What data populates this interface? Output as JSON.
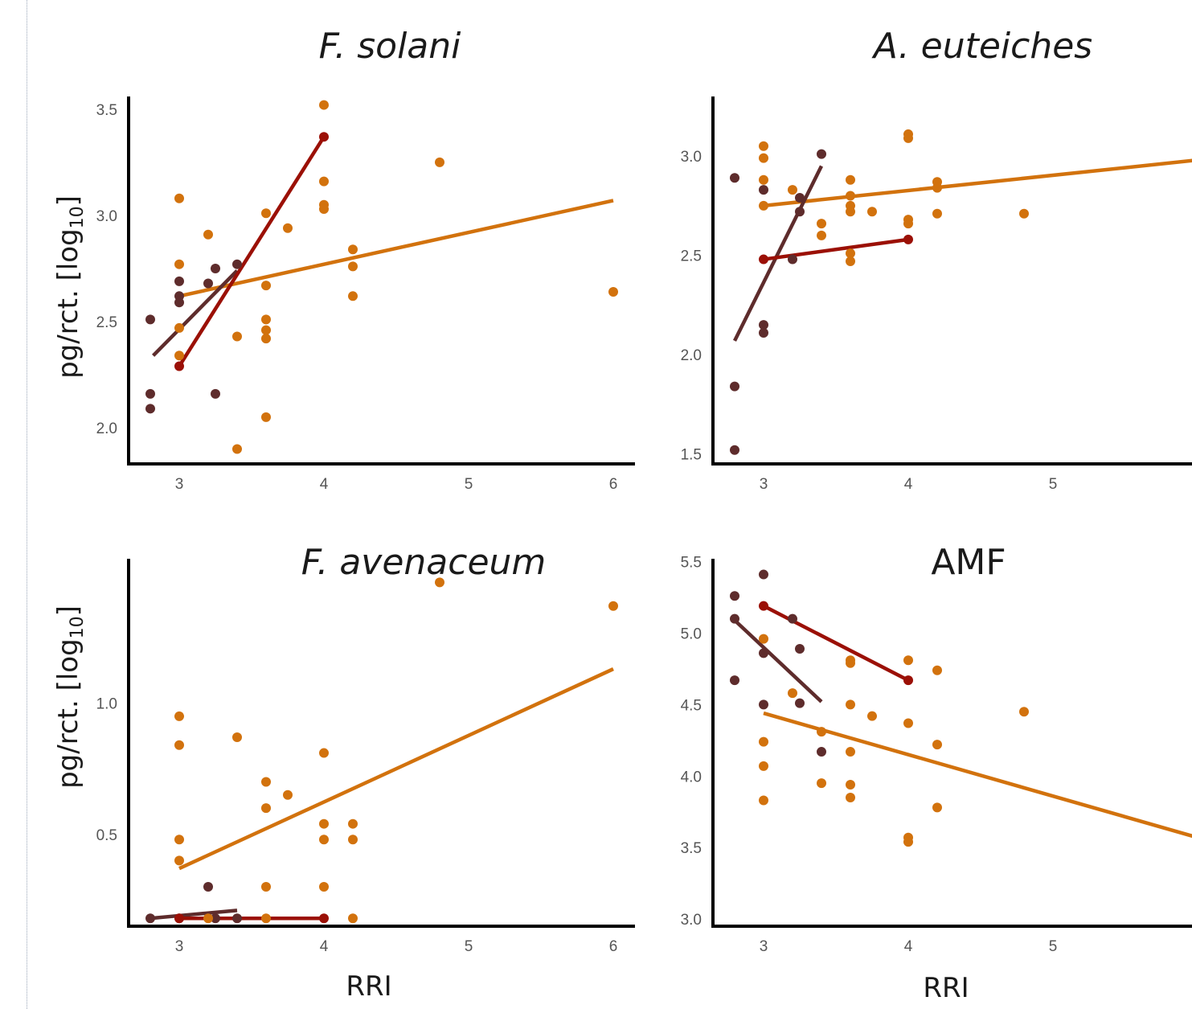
{
  "figure": {
    "ylabel": "pg/rct. [log",
    "ylabel_sub": "10",
    "ylabel_close": "]",
    "xlabel": "RRI"
  },
  "colors": {
    "orange": "#d2720d",
    "darkred": "#9b1006",
    "maroon": "#5e2c2c"
  },
  "chart_data": [
    {
      "type": "scatter",
      "title": "F. solani",
      "xlim": [
        2.65,
        6.15
      ],
      "ylim": [
        1.83,
        3.56
      ],
      "xticks": [
        3,
        4,
        5,
        6
      ],
      "yticks": [
        2.0,
        2.5,
        3.0,
        3.5
      ],
      "points": [
        {
          "color": "maroon",
          "xy": [
            [
              2.8,
              2.51
            ],
            [
              2.8,
              2.16
            ],
            [
              2.8,
              2.09
            ],
            [
              3,
              2.69
            ],
            [
              3,
              2.62
            ],
            [
              3,
              2.59
            ],
            [
              3.2,
              2.68
            ],
            [
              3.25,
              2.75
            ],
            [
              3.25,
              2.16
            ],
            [
              3.4,
              2.77
            ]
          ]
        },
        {
          "color": "darkred",
          "xy": [
            [
              3,
              2.29
            ],
            [
              4,
              3.37
            ]
          ]
        },
        {
          "color": "orange",
          "xy": [
            [
              3,
              3.08
            ],
            [
              3,
              2.77
            ],
            [
              3,
              2.47
            ],
            [
              3,
              2.34
            ],
            [
              3.2,
              2.91
            ],
            [
              3.4,
              2.43
            ],
            [
              3.4,
              1.9
            ],
            [
              3.6,
              3.01
            ],
            [
              3.6,
              2.67
            ],
            [
              3.6,
              2.51
            ],
            [
              3.6,
              2.46
            ],
            [
              3.6,
              2.42
            ],
            [
              3.6,
              2.05
            ],
            [
              3.75,
              2.94
            ],
            [
              4,
              3.52
            ],
            [
              4,
              3.16
            ],
            [
              4,
              3.05
            ],
            [
              4,
              3.03
            ],
            [
              4.2,
              2.84
            ],
            [
              4.2,
              2.76
            ],
            [
              4.2,
              2.62
            ],
            [
              4.8,
              3.25
            ],
            [
              6,
              2.64
            ]
          ]
        }
      ],
      "lines": [
        {
          "color": "orange",
          "from": [
            3,
            2.62
          ],
          "to": [
            6,
            3.07
          ]
        },
        {
          "color": "maroon",
          "from": [
            2.82,
            2.34
          ],
          "to": [
            3.4,
            2.74
          ]
        },
        {
          "color": "darkred",
          "from": [
            3,
            2.29
          ],
          "to": [
            4,
            3.37
          ]
        }
      ]
    },
    {
      "type": "scatter",
      "title": "A. euteiches",
      "xlim": [
        2.65,
        6.15
      ],
      "ylim": [
        1.45,
        3.3
      ],
      "xticks": [
        3,
        4,
        5
      ],
      "yticks": [
        1.5,
        2.0,
        2.5,
        3.0
      ],
      "points": [
        {
          "color": "maroon",
          "xy": [
            [
              2.8,
              2.89
            ],
            [
              2.8,
              1.84
            ],
            [
              2.8,
              1.52
            ],
            [
              3,
              2.83
            ],
            [
              3,
              2.15
            ],
            [
              3,
              2.11
            ],
            [
              3.2,
              2.48
            ],
            [
              3.25,
              2.79
            ],
            [
              3.25,
              2.72
            ],
            [
              3.4,
              3.01
            ]
          ]
        },
        {
          "color": "darkred",
          "xy": [
            [
              3,
              2.48
            ],
            [
              4,
              2.58
            ]
          ]
        },
        {
          "color": "orange",
          "xy": [
            [
              3,
              3.05
            ],
            [
              3,
              2.99
            ],
            [
              3,
              2.88
            ],
            [
              3,
              2.75
            ],
            [
              3.2,
              2.83
            ],
            [
              3.4,
              2.66
            ],
            [
              3.4,
              2.6
            ],
            [
              3.6,
              2.88
            ],
            [
              3.6,
              2.8
            ],
            [
              3.6,
              2.75
            ],
            [
              3.6,
              2.72
            ],
            [
              3.6,
              2.51
            ],
            [
              3.6,
              2.47
            ],
            [
              3.75,
              2.72
            ],
            [
              4,
              3.11
            ],
            [
              4,
              3.09
            ],
            [
              4,
              2.68
            ],
            [
              4,
              2.66
            ],
            [
              4.2,
              2.87
            ],
            [
              4.2,
              2.84
            ],
            [
              4.2,
              2.71
            ],
            [
              4.8,
              2.71
            ]
          ]
        }
      ],
      "lines": [
        {
          "color": "orange",
          "from": [
            3,
            2.75
          ],
          "to": [
            6,
            2.98
          ]
        },
        {
          "color": "maroon",
          "from": [
            2.8,
            2.07
          ],
          "to": [
            3.4,
            2.95
          ]
        },
        {
          "color": "darkred",
          "from": [
            3,
            2.48
          ],
          "to": [
            4,
            2.58
          ]
        }
      ]
    },
    {
      "type": "scatter",
      "title": "F. avenaceum",
      "xlim": [
        2.65,
        6.15
      ],
      "ylim": [
        0.15,
        1.55
      ],
      "xticks": [
        3,
        4,
        5,
        6
      ],
      "yticks": [
        0.5,
        1.0
      ],
      "points": [
        {
          "color": "maroon",
          "xy": [
            [
              2.8,
              0.18
            ],
            [
              3,
              0.18
            ],
            [
              3.2,
              0.3
            ],
            [
              3.25,
              0.18
            ],
            [
              3.4,
              0.18
            ]
          ]
        },
        {
          "color": "darkred",
          "xy": [
            [
              3,
              0.18
            ],
            [
              4,
              0.18
            ]
          ]
        },
        {
          "color": "orange",
          "xy": [
            [
              3,
              0.95
            ],
            [
              3,
              0.84
            ],
            [
              3,
              0.48
            ],
            [
              3,
              0.4
            ],
            [
              3.2,
              0.18
            ],
            [
              3.4,
              0.87
            ],
            [
              3.6,
              0.7
            ],
            [
              3.6,
              0.6
            ],
            [
              3.6,
              0.3
            ],
            [
              3.6,
              0.18
            ],
            [
              3.75,
              0.65
            ],
            [
              4,
              0.81
            ],
            [
              4,
              0.54
            ],
            [
              4,
              0.48
            ],
            [
              4,
              0.3
            ],
            [
              4.2,
              0.54
            ],
            [
              4.2,
              0.48
            ],
            [
              4.2,
              0.18
            ],
            [
              4.8,
              1.46
            ],
            [
              6,
              1.37
            ]
          ]
        }
      ],
      "lines": [
        {
          "color": "orange",
          "from": [
            3,
            0.37
          ],
          "to": [
            6,
            1.13
          ]
        },
        {
          "color": "maroon",
          "from": [
            2.8,
            0.18
          ],
          "to": [
            3.4,
            0.21
          ]
        },
        {
          "color": "darkred",
          "from": [
            3,
            0.18
          ],
          "to": [
            4,
            0.18
          ]
        }
      ]
    },
    {
      "type": "scatter",
      "title": "AMF",
      "xlim": [
        2.65,
        6.15
      ],
      "ylim": [
        2.95,
        5.52
      ],
      "xticks": [
        3,
        4,
        5
      ],
      "yticks": [
        3.0,
        3.5,
        4.0,
        4.5,
        5.0,
        5.5
      ],
      "points": [
        {
          "color": "maroon",
          "xy": [
            [
              2.8,
              5.26
            ],
            [
              2.8,
              5.1
            ],
            [
              2.8,
              4.67
            ],
            [
              3,
              5.41
            ],
            [
              3,
              4.86
            ],
            [
              3,
              4.5
            ],
            [
              3.2,
              5.1
            ],
            [
              3.25,
              4.89
            ],
            [
              3.25,
              4.51
            ],
            [
              3.4,
              4.17
            ]
          ]
        },
        {
          "color": "darkred",
          "xy": [
            [
              3,
              5.19
            ],
            [
              4,
              4.67
            ]
          ]
        },
        {
          "color": "orange",
          "xy": [
            [
              3,
              4.96
            ],
            [
              3,
              4.24
            ],
            [
              3,
              4.07
            ],
            [
              3,
              3.83
            ],
            [
              3.2,
              4.58
            ],
            [
              3.4,
              4.31
            ],
            [
              3.4,
              3.95
            ],
            [
              3.6,
              4.81
            ],
            [
              3.6,
              4.79
            ],
            [
              3.6,
              4.5
            ],
            [
              3.6,
              4.17
            ],
            [
              3.6,
              3.94
            ],
            [
              3.6,
              3.85
            ],
            [
              3.75,
              4.42
            ],
            [
              4,
              4.81
            ],
            [
              4,
              4.37
            ],
            [
              4,
              3.57
            ],
            [
              4,
              3.54
            ],
            [
              4.2,
              4.74
            ],
            [
              4.2,
              4.22
            ],
            [
              4.2,
              3.78
            ],
            [
              4.8,
              4.45
            ]
          ]
        }
      ],
      "lines": [
        {
          "color": "orange",
          "from": [
            3,
            4.44
          ],
          "to": [
            6,
            3.57
          ]
        },
        {
          "color": "maroon",
          "from": [
            2.8,
            5.09
          ],
          "to": [
            3.4,
            4.52
          ]
        },
        {
          "color": "darkred",
          "from": [
            3,
            5.19
          ],
          "to": [
            4,
            4.67
          ]
        }
      ]
    }
  ]
}
